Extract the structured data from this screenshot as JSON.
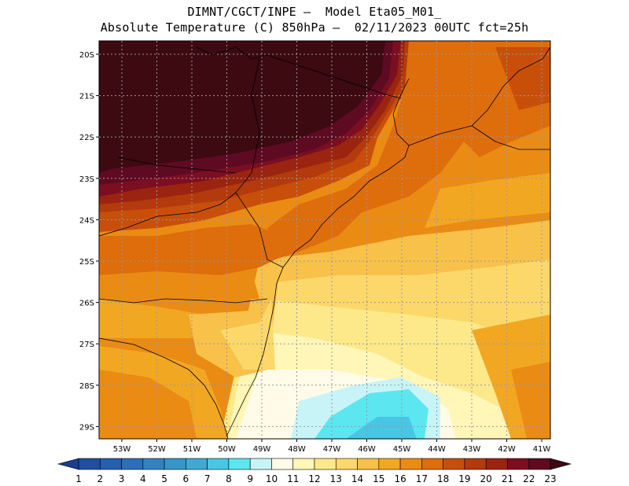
{
  "header": {
    "line1": "DIMNT/CGCT/INPE —  Model Eta05_M01_",
    "line2": "Absolute Temperature (C) 850hPa —  02/11/2023 00UTC fct=25h"
  },
  "axes": {
    "lat_labels": [
      "20S",
      "21S",
      "22S",
      "23S",
      "24S",
      "25S",
      "26S",
      "27S",
      "28S",
      "29S"
    ],
    "lon_labels": [
      "53W",
      "52W",
      "51W",
      "50W",
      "49W",
      "48W",
      "47W",
      "46W",
      "45W",
      "44W",
      "43W",
      "42W",
      "41W"
    ]
  },
  "colorbar": {
    "labels": [
      "1",
      "2",
      "3",
      "4",
      "5",
      "6",
      "7",
      "8",
      "9",
      "10",
      "11",
      "12",
      "13",
      "14",
      "15",
      "16",
      "17",
      "18",
      "19",
      "20",
      "21",
      "22",
      "23"
    ],
    "colors": [
      "#1a3d8f",
      "#1f4f9e",
      "#255fae",
      "#2c6fb8",
      "#3282c2",
      "#3895c9",
      "#3fa9d4",
      "#48c6e3",
      "#5ce6f0",
      "#c8f4f8",
      "#fffbe8",
      "#fff6b8",
      "#fde98a",
      "#fcd86a",
      "#f8c14a",
      "#f2a722",
      "#ea8b14",
      "#de6d0c",
      "#c84f0a",
      "#b23a0c",
      "#9a2410",
      "#7c0e22",
      "#5e0a22",
      "#3c0a10"
    ],
    "under_color": "#1a3d8f",
    "over_color": "#3c0a10"
  }
}
